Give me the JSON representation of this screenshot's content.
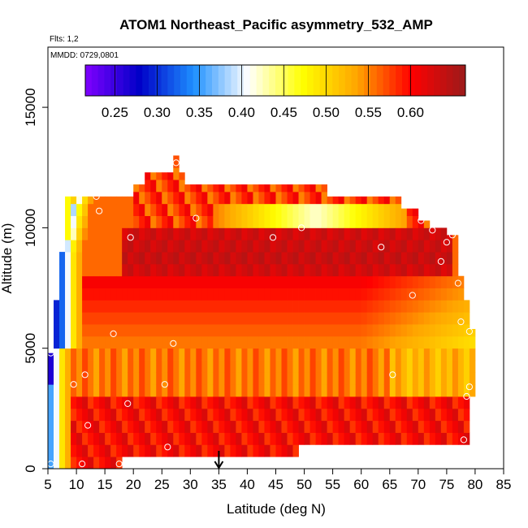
{
  "chart_data": {
    "type": "heatmap",
    "title": "ATOM1 Northeast_Pacific asymmetry_532_AMP",
    "flights_label": "Flts: 1,2",
    "date_label": "MMDD: 0729,0801",
    "xlabel": "Latitude (deg N)",
    "ylabel": "Altitude (m)",
    "xlim": [
      5,
      85
    ],
    "ylim": [
      0,
      17500
    ],
    "x_ticks": [
      5,
      10,
      15,
      20,
      25,
      30,
      35,
      40,
      45,
      50,
      55,
      60,
      65,
      70,
      75,
      80,
      85
    ],
    "y_ticks": [
      0,
      5000,
      10000,
      15000
    ],
    "colorbar": {
      "min": 0.215,
      "max": 0.665,
      "ticks": [
        0.25,
        0.3,
        0.35,
        0.4,
        0.45,
        0.5,
        0.55,
        0.6
      ],
      "tick_labels": [
        "0.25",
        "0.30",
        "0.35",
        "0.40",
        "0.45",
        "0.50",
        "0.55",
        "0.60"
      ],
      "colors": [
        "#8000ff",
        "#0000c8",
        "#1e90ff",
        "#ffffff",
        "#ffff00",
        "#ffa500",
        "#ff0000",
        "#9b1b1b"
      ]
    },
    "grid": {
      "lat_min": 5,
      "lat_max": 80,
      "lat_step": 1,
      "alt_step": 500,
      "value_range": [
        0.22,
        0.65
      ]
    },
    "marker_latitude": 35,
    "sample_points": [
      {
        "lat": 5.5,
        "alt": 4800
      },
      {
        "lat": 5.5,
        "alt": 200
      },
      {
        "lat": 9.5,
        "alt": 3500
      },
      {
        "lat": 11,
        "alt": 200
      },
      {
        "lat": 11.5,
        "alt": 3900
      },
      {
        "lat": 12,
        "alt": 1800
      },
      {
        "lat": 13.5,
        "alt": 11300
      },
      {
        "lat": 14,
        "alt": 10700
      },
      {
        "lat": 16.5,
        "alt": 5600
      },
      {
        "lat": 17.5,
        "alt": 200
      },
      {
        "lat": 18.5,
        "alt": 200
      },
      {
        "lat": 19,
        "alt": 2700
      },
      {
        "lat": 19.5,
        "alt": 9600
      },
      {
        "lat": 25.5,
        "alt": 3500
      },
      {
        "lat": 26,
        "alt": 900
      },
      {
        "lat": 27,
        "alt": 5200
      },
      {
        "lat": 27.5,
        "alt": 12700
      },
      {
        "lat": 31,
        "alt": 10400
      },
      {
        "lat": 44.5,
        "alt": 9600
      },
      {
        "lat": 49.5,
        "alt": 10000
      },
      {
        "lat": 63.5,
        "alt": 9200
      },
      {
        "lat": 65.5,
        "alt": 3900
      },
      {
        "lat": 67.5,
        "alt": 11400
      },
      {
        "lat": 69,
        "alt": 7200
      },
      {
        "lat": 70.5,
        "alt": 10300
      },
      {
        "lat": 72.5,
        "alt": 9900
      },
      {
        "lat": 74,
        "alt": 8600
      },
      {
        "lat": 75,
        "alt": 9400
      },
      {
        "lat": 76,
        "alt": 9700
      },
      {
        "lat": 77,
        "alt": 7700
      },
      {
        "lat": 77.5,
        "alt": 6100
      },
      {
        "lat": 78,
        "alt": 1200
      },
      {
        "lat": 78.5,
        "alt": 3000
      },
      {
        "lat": 79,
        "alt": 3400
      },
      {
        "lat": 79,
        "alt": 5700
      }
    ]
  }
}
